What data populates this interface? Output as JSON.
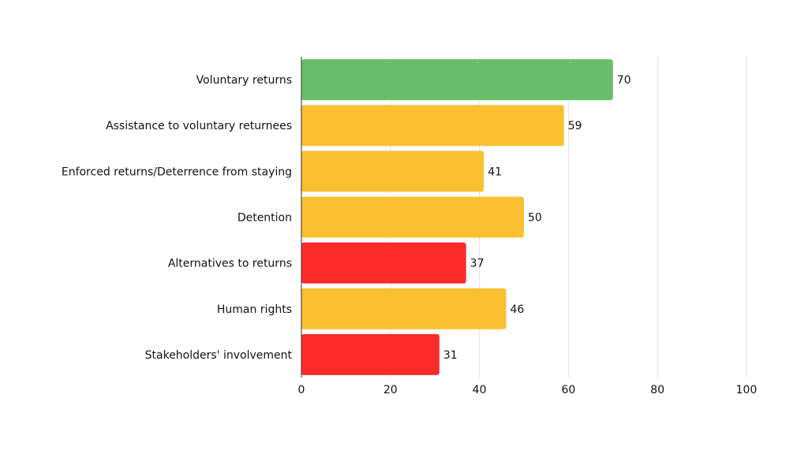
{
  "colors": {
    "green": "#69bd6b",
    "yellow": "#fac032",
    "red": "#fd2a2a"
  },
  "chart_data": {
    "type": "bar",
    "orientation": "horizontal",
    "title": "",
    "xlabel": "",
    "ylabel": "",
    "xlim": [
      0,
      100
    ],
    "xticks": [
      0,
      20,
      40,
      60,
      80,
      100
    ],
    "grid": true,
    "legend": "none",
    "categories": [
      "Voluntary returns",
      "Assistance to voluntary returnees",
      "Enforced returns/Deterrence from staying",
      "Detention",
      "Alternatives to returns",
      "Human rights",
      "Stakeholders' involvement"
    ],
    "values": [
      70,
      59,
      41,
      50,
      37,
      46,
      31
    ],
    "bar_colors": [
      "green",
      "yellow",
      "yellow",
      "yellow",
      "red",
      "yellow",
      "red"
    ]
  }
}
